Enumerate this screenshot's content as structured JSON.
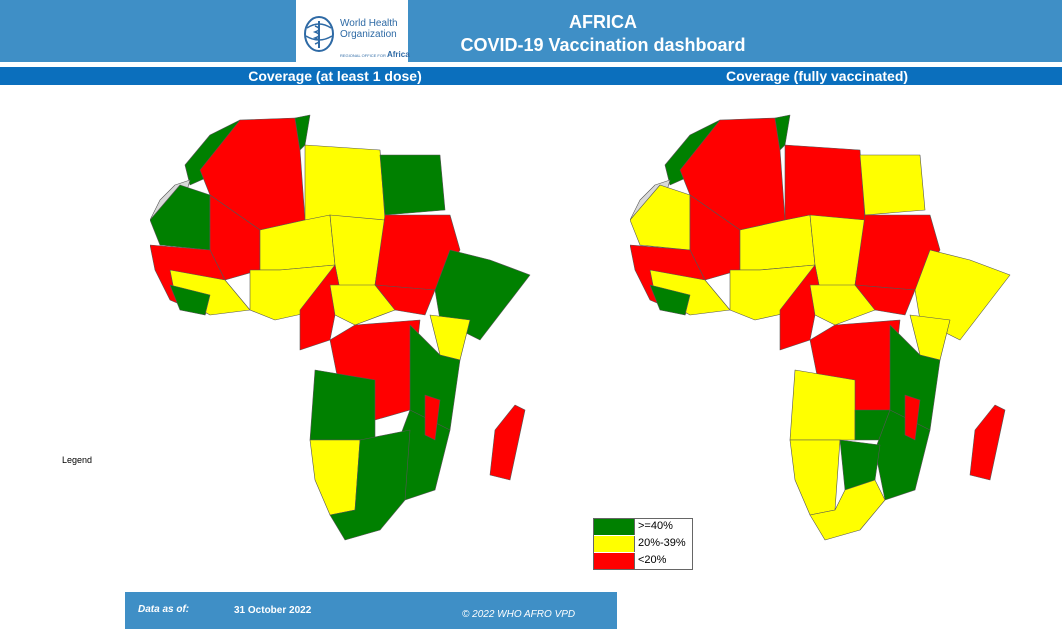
{
  "header": {
    "title_line1": "AFRICA",
    "title_line2": "COVID-19 Vaccination dashboard",
    "logo_name_line1": "World Health",
    "logo_name_line2": "Organization",
    "logo_sub_small": "REGIONAL OFFICE FOR",
    "logo_sub_big": "Africa"
  },
  "maps": {
    "left_label": "Coverage (at least 1 dose)",
    "right_label": "Coverage (fully vaccinated)"
  },
  "legend": {
    "title": "Legend",
    "items": [
      {
        "label": ">=40%",
        "color": "#008000"
      },
      {
        "label": "20%-39%",
        "color": "#ffff00"
      },
      {
        "label": "<20%",
        "color": "#ff0000"
      }
    ],
    "no_data_color": "#d9d9d9"
  },
  "footer": {
    "date_label": "Data as of:",
    "date_value": "31 October 2022",
    "copyright": "© 2022 WHO AFRO VPD"
  }
}
